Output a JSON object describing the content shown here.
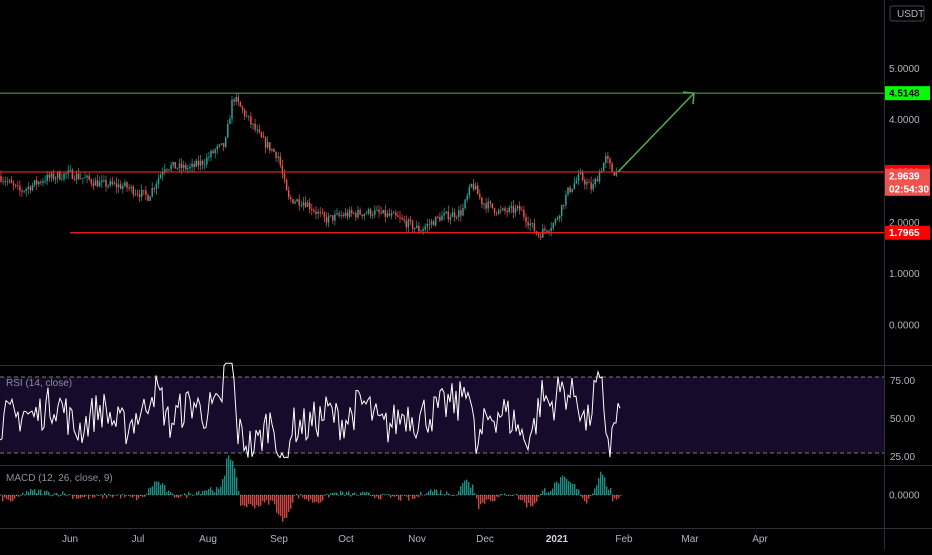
{
  "currency_label": "USDT",
  "colors": {
    "background": "#000000",
    "up": "#26a69a",
    "down": "#ef5350",
    "rsi_line": "#ffffff",
    "rsi_band": "#1a0b2e",
    "green_line": "#4caf50",
    "red_line": "#ff1f1f",
    "axis_text": "#b2b5be"
  },
  "price_axis": {
    "ticks": [
      "5.0000",
      "4.0000",
      "2.0000",
      "1.0000",
      "0.0000"
    ]
  },
  "price_tags": [
    {
      "name": "tag-resistance-green",
      "value": "4.5148",
      "bg": "#00ff00",
      "fg": "#000000"
    },
    {
      "name": "tag-resistance-red",
      "value": "2.9809",
      "bg": "#ff0000",
      "fg": "#ffffff"
    },
    {
      "name": "tag-last-price",
      "value": "2.9639",
      "bg": "#ef5350",
      "fg": "#ffffff"
    },
    {
      "name": "tag-countdown",
      "value": "02:54:30",
      "bg": "#ef5350",
      "fg": "#ffffff"
    },
    {
      "name": "tag-support-red",
      "value": "1.7965",
      "bg": "#ff0000",
      "fg": "#ffffff"
    }
  ],
  "time_axis": {
    "labels": [
      {
        "text": "Jun",
        "bold": false
      },
      {
        "text": "Jul",
        "bold": false
      },
      {
        "text": "Aug",
        "bold": false
      },
      {
        "text": "Sep",
        "bold": false
      },
      {
        "text": "Oct",
        "bold": false
      },
      {
        "text": "Nov",
        "bold": false
      },
      {
        "text": "Dec",
        "bold": false
      },
      {
        "text": "2021",
        "bold": true
      },
      {
        "text": "Feb",
        "bold": false
      },
      {
        "text": "Mar",
        "bold": false
      },
      {
        "text": "Apr",
        "bold": false
      }
    ]
  },
  "rsi": {
    "title": "RSI (14, close)",
    "ticks": [
      "75.00",
      "50.00",
      "25.00"
    ]
  },
  "macd": {
    "title": "MACD (12, 26, close, 9)",
    "ticks": [
      "0.0000"
    ]
  },
  "chart_data": {
    "type": "candlestick",
    "price_keypoints": [
      {
        "x": "Jun",
        "y": 2.9
      },
      {
        "x": "Jul",
        "y": 2.55
      },
      {
        "x": "Jul",
        "y": 3.1
      },
      {
        "x": "Aug",
        "y": 3.3
      },
      {
        "x": "Aug",
        "y": 4.5
      },
      {
        "x": "Sep",
        "y": 3.3
      },
      {
        "x": "Sep",
        "y": 2.35
      },
      {
        "x": "Oct",
        "y": 2.0
      },
      {
        "x": "Nov",
        "y": 1.85
      },
      {
        "x": "Nov",
        "y": 2.9
      },
      {
        "x": "Dec",
        "y": 2.15
      },
      {
        "x": "Dec",
        "y": 1.65
      },
      {
        "x": "2021",
        "y": 3.3
      },
      {
        "x": "2021",
        "y": 2.9639
      }
    ],
    "horizontal_lines": [
      4.5148,
      2.9809,
      1.7965
    ],
    "projection": {
      "from": 2.9809,
      "to": 4.5148,
      "to_label": "Mar"
    },
    "rsi_range": [
      25,
      75
    ],
    "macd_zero": 0.0
  }
}
